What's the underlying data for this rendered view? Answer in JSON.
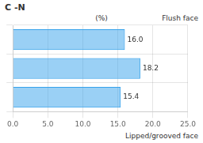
{
  "chart_data": {
    "type": "bar",
    "orientation": "horizontal",
    "title": "C -N",
    "xlabel": "(%)",
    "annotations": [
      "Flush face",
      "Lipped/grooved face"
    ],
    "categories": [
      null,
      null,
      null
    ],
    "values": [
      16.0,
      18.2,
      15.4
    ],
    "value_labels": [
      "16.0",
      "18.2",
      "15.4"
    ],
    "data_labels": true,
    "xlim": [
      0.0,
      25.0
    ],
    "xticks": [
      {
        "value": 0.0,
        "label": "0.0"
      },
      {
        "value": 5.0,
        "label": "5.0"
      },
      {
        "value": 10.0,
        "label": "10.0"
      },
      {
        "value": 15.0,
        "label": "15.0"
      },
      {
        "value": 20.0,
        "label": "20.0"
      },
      {
        "value": 25.0,
        "label": "25.0"
      }
    ],
    "grid": true,
    "tick_labels": "x"
  }
}
